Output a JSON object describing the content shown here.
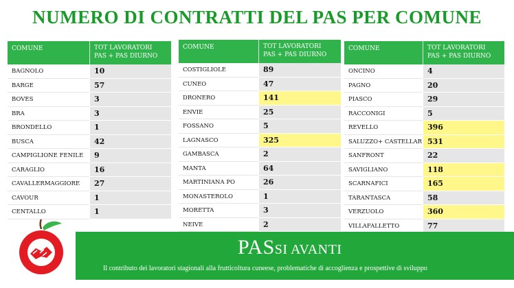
{
  "title": "NUMERO DI CONTRATTI DEL PAS PER COMUNE",
  "header": {
    "col1": "COMUNE",
    "col2_line1": "TOT LAVORATORI",
    "col2_line2": "PAS + PAS DIURNO"
  },
  "table1": [
    {
      "name": "BAGNOLO",
      "value": "10",
      "highlight": false
    },
    {
      "name": "BARGE",
      "value": "57",
      "highlight": false
    },
    {
      "name": "BOVES",
      "value": "3",
      "highlight": false
    },
    {
      "name": "BRA",
      "value": "3",
      "highlight": false
    },
    {
      "name": "BRONDELLO",
      "value": "1",
      "highlight": false
    },
    {
      "name": "BUSCA",
      "value": "42",
      "highlight": false
    },
    {
      "name": "CAMPIGLIONE FENILE",
      "value": "9",
      "highlight": false
    },
    {
      "name": "CARAGLIO",
      "value": "16",
      "highlight": false
    },
    {
      "name": "CAVALLERMAGGIORE",
      "value": "27",
      "highlight": false
    },
    {
      "name": "CAVOUR",
      "value": "1",
      "highlight": false
    },
    {
      "name": "CENTALLO",
      "value": "1",
      "highlight": false
    }
  ],
  "table2": [
    {
      "name": "COSTIGLIOLE",
      "value": "89",
      "highlight": false
    },
    {
      "name": "CUNEO",
      "value": "47",
      "highlight": false
    },
    {
      "name": "DRONERO",
      "value": "141",
      "highlight": true
    },
    {
      "name": "ENVIE",
      "value": "25",
      "highlight": false
    },
    {
      "name": "FOSSANO",
      "value": "5",
      "highlight": false
    },
    {
      "name": "LAGNASCO",
      "value": "325",
      "highlight": true
    },
    {
      "name": "GAMBASCA",
      "value": "2",
      "highlight": false
    },
    {
      "name": "MANTA",
      "value": "64",
      "highlight": false
    },
    {
      "name": "MARTINIANA PO",
      "value": "26",
      "highlight": false
    },
    {
      "name": "MONASTEROLO",
      "value": "1",
      "highlight": false
    },
    {
      "name": "MORETTA",
      "value": "3",
      "highlight": false
    },
    {
      "name": "NEIVE",
      "value": "2",
      "highlight": false
    }
  ],
  "table3": [
    {
      "name": "ONCINO",
      "value": "4",
      "highlight": false
    },
    {
      "name": "PAGNO",
      "value": "20",
      "highlight": false
    },
    {
      "name": "PIASCO",
      "value": "29",
      "highlight": false
    },
    {
      "name": "RACCONIGI",
      "value": "5",
      "highlight": false
    },
    {
      "name": "REVELLO",
      "value": "396",
      "highlight": true
    },
    {
      "name": "SALUZZO+ CASTELLAR",
      "value": "531",
      "highlight": true
    },
    {
      "name": "SANFRONT",
      "value": "22",
      "highlight": false
    },
    {
      "name": "SAVIGLIANO",
      "value": "118",
      "highlight": true
    },
    {
      "name": "SCARNAFICI",
      "value": "165",
      "highlight": true
    },
    {
      "name": "TARANTASCA",
      "value": "58",
      "highlight": false
    },
    {
      "name": "VERZUOLO",
      "value": "360",
      "highlight": true
    },
    {
      "name": "VILLAFALLETTO",
      "value": "77",
      "highlight": false
    }
  ],
  "banner": {
    "title_main": "PAS",
    "title_rest": "SI AVANTI",
    "subtitle": "Il contributo dei lavoratori stagionali alla frutticoltura cuneese, problematiche di accoglienza e prospettive di sviluppo"
  },
  "colors": {
    "title_green": "#1a9a2a",
    "header_green": "#2fb34a",
    "banner_green": "#22a83a",
    "highlight_yellow": "#fff78a",
    "value_gray": "#e6e6e6"
  },
  "icons": {
    "logo": "apple-handshake-logo"
  }
}
